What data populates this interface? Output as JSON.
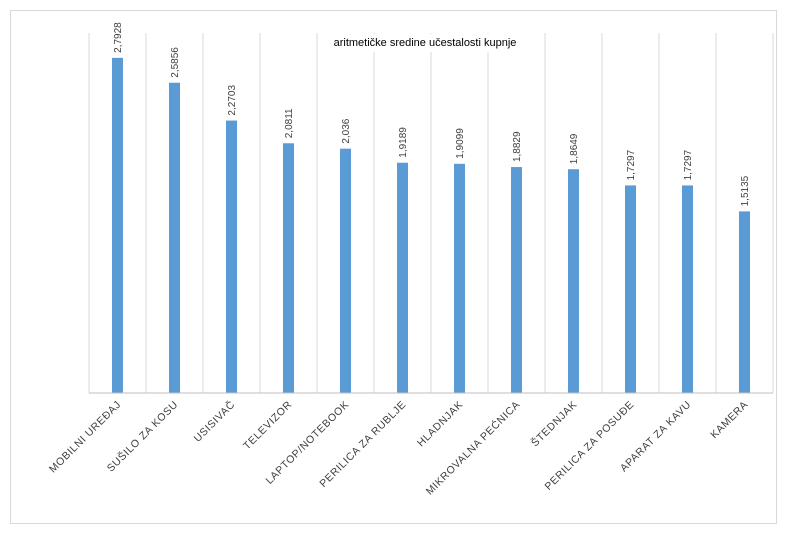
{
  "chart_data": {
    "type": "bar",
    "title": "aritmetičke sredine učestalosti kupnje",
    "categories": [
      "MOBILNI UREĐAJ",
      "SUŠILO ZA KOSU",
      "USISIVAČ",
      "TELEVIZOR",
      "LAPTOP/NOTEBOOK",
      "PERILICA ZA RUBLJE",
      "HLADNJAK",
      "MIKROVALNA PEĆNICA",
      "ŠTEDNJAK",
      "PERILICA ZA POSUĐE",
      "APARAT ZA KAVU",
      "KAMERA"
    ],
    "values": [
      2.7928,
      2.5856,
      2.2703,
      2.0811,
      2.036,
      1.9189,
      1.9099,
      1.8829,
      1.8649,
      1.7297,
      1.7297,
      1.5135
    ],
    "value_labels": [
      "2,7928",
      "2,5856",
      "2,2703",
      "2,0811",
      "2,036",
      "1,9189",
      "1,9099",
      "1,8829",
      "1,8649",
      "1,7297",
      "1,7297",
      "1,5135"
    ],
    "ylim": [
      0,
      3
    ],
    "xlabel": "",
    "ylabel": "",
    "grid": "vertical",
    "bar_color": "#5b9bd5",
    "grid_color": "#d9d9d9"
  }
}
